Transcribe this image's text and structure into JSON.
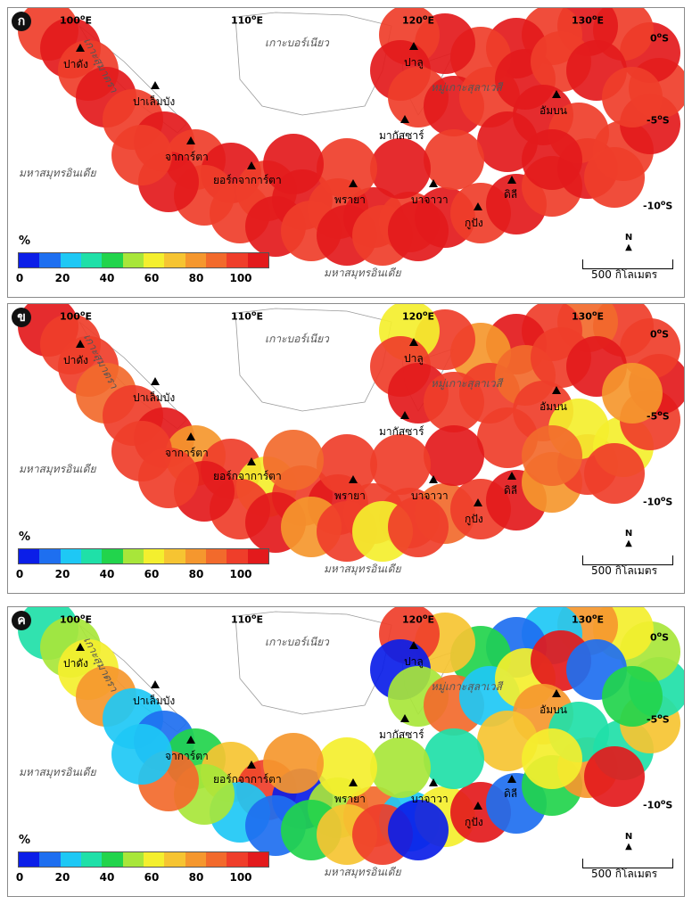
{
  "legend": {
    "unit": "%",
    "ticks": [
      "0",
      "20",
      "40",
      "60",
      "80",
      "100"
    ],
    "colors": [
      "#0b1ee8",
      "#1e6ff0",
      "#1ec8f5",
      "#1fe0a8",
      "#22d44c",
      "#a8e63a",
      "#f4ef2e",
      "#f6c432",
      "#f5972e",
      "#f26a2c",
      "#ef3e2a",
      "#e31a1c"
    ]
  },
  "map": {
    "scale_label": "500 กิโลเมตร",
    "north_label": "N",
    "coords": {
      "lon100": "100",
      "lon110": "110",
      "lon120": "120",
      "lon130": "130",
      "deg": "o",
      "lon_suffix": "E",
      "lat0": "0",
      "lat5": "-5",
      "lat10": "-10",
      "lat_suffix": "S"
    },
    "geo_labels": {
      "sumatra": "เกาะสุมาตรา",
      "borneo": "เกาะบอร์เนียว",
      "sulawesi": "หมู่เกาะสุลาเวสี",
      "indian_ocean": "มหาสมุทรอินเดีย"
    },
    "cities": {
      "padang": "ปาดัง",
      "palembang": "ปาเล็มบัง",
      "jakarta": "จาการ์ตา",
      "yogyakarta": "ยอร์กจาการ์ตา",
      "surabaya": "พรายา",
      "bajawa": "บาจาวา",
      "kupang": "กูปัง",
      "dili": "ดิลี",
      "palu": "ปาลู",
      "makassar": "มากัสซาร์",
      "ambon": "อัมบน"
    }
  },
  "panels": [
    {
      "badge": "ก",
      "overall_level": "high"
    },
    {
      "badge": "ข",
      "overall_level": "high-medium"
    },
    {
      "badge": "ค",
      "overall_level": "mixed"
    }
  ]
}
